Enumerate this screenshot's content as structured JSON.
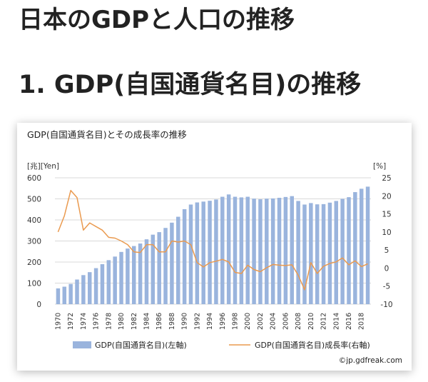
{
  "page": {
    "title": "日本のGDPと人口の推移",
    "section_title": "1. GDP(自国通貨名目)の推移"
  },
  "colors": {
    "bar": "#9ab4dd",
    "line": "#ea9a4f",
    "grid": "#d9d9d9"
  },
  "chart_data": {
    "type": "bar",
    "title": "GDP(自国通貨名目)とその成長率の推移",
    "left_unit_label": "[兆][Yen]",
    "right_unit_label": "[%]",
    "x": [
      1970,
      1971,
      1972,
      1973,
      1974,
      1975,
      1976,
      1977,
      1978,
      1979,
      1980,
      1981,
      1982,
      1983,
      1984,
      1985,
      1986,
      1987,
      1988,
      1989,
      1990,
      1991,
      1992,
      1993,
      1994,
      1995,
      1996,
      1997,
      1998,
      1999,
      2000,
      2001,
      2002,
      2003,
      2004,
      2005,
      2006,
      2007,
      2008,
      2009,
      2010,
      2011,
      2012,
      2013,
      2014,
      2015,
      2016,
      2017,
      2018,
      2019
    ],
    "x_tick_labels": [
      "1970",
      "1972",
      "1974",
      "1976",
      "1978",
      "1980",
      "1982",
      "1984",
      "1986",
      "1988",
      "1990",
      "1992",
      "1994",
      "1996",
      "1998",
      "2000",
      "2002",
      "2004",
      "2006",
      "2008",
      "2010",
      "2012",
      "2014",
      "2016",
      "2018"
    ],
    "y_left_ticks": [
      "0",
      "100",
      "200",
      "300",
      "400",
      "500",
      "600"
    ],
    "y_right_ticks": [
      "-10",
      "-5",
      "0",
      "5",
      "10",
      "15",
      "20",
      "25"
    ],
    "ylim_left": [
      0,
      600
    ],
    "ylim_right": [
      -10,
      25
    ],
    "legend_position": "bottom",
    "series": [
      {
        "name": "GDP(自国通貨名目)(左軸)",
        "kind": "bar",
        "axis": "left",
        "values": [
          75,
          83,
          96,
          117,
          138,
          152,
          171,
          190,
          209,
          226,
          248,
          264,
          276,
          288,
          308,
          330,
          342,
          362,
          387,
          415,
          451,
          473,
          483,
          487,
          491,
          497,
          510,
          521,
          510,
          507,
          510,
          501,
          498,
          501,
          502,
          505,
          509,
          513,
          490,
          473,
          480,
          474,
          475,
          482,
          490,
          500,
          508,
          532,
          548,
          558
        ]
      },
      {
        "name": "GDP(自国通貨名目)成長率(右軸)",
        "kind": "line",
        "axis": "right",
        "values": [
          10,
          14.5,
          21.5,
          19.5,
          10.5,
          12.5,
          11.5,
          10.5,
          8.5,
          8.3,
          7.5,
          6.5,
          4.5,
          4.3,
          6.5,
          6.5,
          4.5,
          4.5,
          7.5,
          7.2,
          7.5,
          6.5,
          1.5,
          0.3,
          1.5,
          1.9,
          2.4,
          1.7,
          -1.2,
          -1.5,
          0.8,
          -0.4,
          -1.0,
          0.1,
          1.0,
          0.8,
          0.7,
          0.9,
          -2.0,
          -6.0,
          1.5,
          -1.5,
          0.5,
          1.3,
          1.7,
          2.8,
          0.9,
          2.0,
          0.4,
          1.2
        ]
      }
    ],
    "credit": "©jp.gdfreak.com"
  }
}
